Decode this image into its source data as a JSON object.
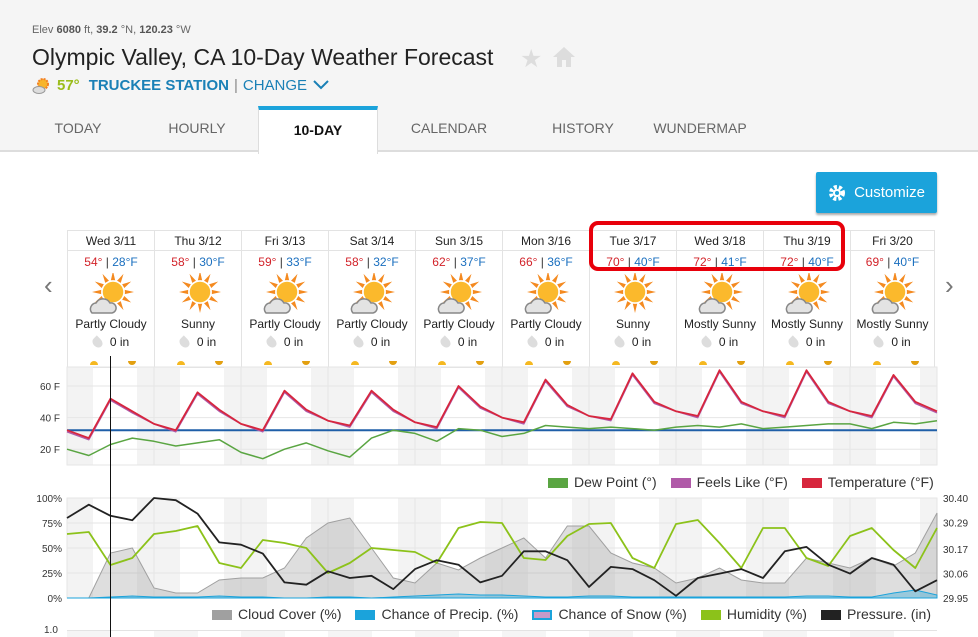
{
  "header": {
    "elev_label": "Elev",
    "elev": "6080",
    "elev_unit": "ft,",
    "lat": "39.2",
    "lat_unit": "°N,",
    "lon": "120.23",
    "lon_unit": "°W",
    "title": "Olympic Valley, CA 10-Day Weather Forecast",
    "current_temp": "57°",
    "station": "TRUCKEE STATION",
    "sep": "|",
    "change": "CHANGE"
  },
  "tabs": [
    "TODAY",
    "HOURLY",
    "10-DAY",
    "CALENDAR",
    "HISTORY",
    "WUNDERMAP"
  ],
  "active_tab": "10-DAY",
  "customize_label": "Customize",
  "days": [
    {
      "name": "Wed 3/11",
      "hi": "54°",
      "lo": "28°F",
      "cond": "Partly Cloudy",
      "precip": "0 in",
      "icon": "partly-cloudy"
    },
    {
      "name": "Thu 3/12",
      "hi": "58°",
      "lo": "30°F",
      "cond": "Sunny",
      "precip": "0 in",
      "icon": "sunny"
    },
    {
      "name": "Fri 3/13",
      "hi": "59°",
      "lo": "33°F",
      "cond": "Partly Cloudy",
      "precip": "0 in",
      "icon": "partly-cloudy"
    },
    {
      "name": "Sat 3/14",
      "hi": "58°",
      "lo": "32°F",
      "cond": "Partly Cloudy",
      "precip": "0 in",
      "icon": "partly-cloudy"
    },
    {
      "name": "Sun 3/15",
      "hi": "62°",
      "lo": "37°F",
      "cond": "Partly Cloudy",
      "precip": "0 in",
      "icon": "partly-cloudy"
    },
    {
      "name": "Mon 3/16",
      "hi": "66°",
      "lo": "36°F",
      "cond": "Partly Cloudy",
      "precip": "0 in",
      "icon": "partly-cloudy"
    },
    {
      "name": "Tue 3/17",
      "hi": "70°",
      "lo": "40°F",
      "cond": "Sunny",
      "precip": "0 in",
      "icon": "sunny"
    },
    {
      "name": "Wed 3/18",
      "hi": "72°",
      "lo": "41°F",
      "cond": "Mostly Sunny",
      "precip": "0 in",
      "icon": "partly-cloudy"
    },
    {
      "name": "Thu 3/19",
      "hi": "72°",
      "lo": "40°F",
      "cond": "Mostly Sunny",
      "precip": "0 in",
      "icon": "partly-cloudy"
    },
    {
      "name": "Fri 3/20",
      "hi": "69°",
      "lo": "40°F",
      "cond": "Mostly Sunny",
      "precip": "0 in",
      "icon": "partly-cloudy"
    }
  ],
  "chart_data": [
    {
      "type": "line",
      "title": "Temperature",
      "x_unit": "6-hour steps from Wed 3/11 00:00",
      "ylim": [
        10,
        72
      ],
      "yticks": [
        "60 F",
        "40 F",
        "20 F"
      ],
      "ytick_values": [
        60,
        40,
        20
      ],
      "freezing_line": 32,
      "legend": [
        "Dew Point (°)",
        "Feels Like (°F)",
        "Temperature (°F)"
      ],
      "colors": {
        "dew": "#5aa542",
        "feels": "#b05aa8",
        "temp": "#d7263d",
        "freeze": "#1f5fa8"
      },
      "series": [
        {
          "name": "Temperature (°F)",
          "values": [
            32,
            27,
            52,
            44,
            36,
            32,
            56,
            45,
            36,
            32,
            57,
            45,
            38,
            35,
            57,
            45,
            37,
            34,
            60,
            47,
            40,
            37,
            64,
            48,
            41,
            39,
            68,
            50,
            44,
            41,
            70,
            50,
            44,
            41,
            70,
            50,
            44,
            41,
            67,
            50,
            44
          ]
        },
        {
          "name": "Feels Like (°F)",
          "values": [
            31,
            26,
            51,
            43,
            36,
            31,
            55,
            44,
            36,
            31,
            56,
            44,
            38,
            34,
            56,
            44,
            37,
            33,
            59,
            46,
            40,
            36,
            63,
            47,
            41,
            38,
            67,
            49,
            44,
            40,
            69,
            49,
            44,
            40,
            69,
            49,
            44,
            40,
            66,
            49,
            43
          ]
        },
        {
          "name": "Dew Point (°)",
          "values": [
            20,
            16,
            23,
            27,
            25,
            22,
            24,
            26,
            18,
            14,
            20,
            24,
            19,
            15,
            27,
            32,
            30,
            25,
            33,
            32,
            28,
            30,
            35,
            34,
            33,
            34,
            33,
            32,
            34,
            35,
            34,
            36,
            33,
            34,
            35,
            36,
            36,
            33,
            37,
            36,
            38
          ]
        }
      ]
    },
    {
      "type": "area",
      "title": "Sky / Precip / Humidity / Pressure",
      "ylim": [
        0,
        100
      ],
      "yticks": [
        "100%",
        "75%",
        "50%",
        "25%",
        "0%"
      ],
      "ytick_values": [
        100,
        75,
        50,
        25,
        0
      ],
      "y2lim": [
        29.95,
        30.4
      ],
      "y2ticks": [
        "30.40",
        "30.29",
        "30.17",
        "30.06",
        "29.95"
      ],
      "y2tick_values": [
        30.4,
        30.29,
        30.17,
        30.06,
        29.95
      ],
      "legend": [
        "Cloud Cover (%)",
        "Chance of Precip. (%)",
        "Chance of Snow (%)",
        "Humidity (%)",
        "Pressure. (in)"
      ],
      "colors": {
        "cloud": "#a0a0a0",
        "precip": "#1ba3db",
        "snow": "#c89ac8",
        "humidity": "#8cc21a",
        "pressure": "#222222"
      },
      "series": [
        {
          "name": "Cloud Cover (%)",
          "values": [
            0,
            0,
            45,
            50,
            10,
            5,
            5,
            18,
            20,
            20,
            30,
            60,
            75,
            80,
            50,
            20,
            15,
            35,
            28,
            40,
            50,
            60,
            40,
            72,
            72,
            45,
            35,
            30,
            15,
            20,
            30,
            18,
            15,
            15,
            40,
            35,
            30,
            40,
            32,
            45,
            85
          ]
        },
        {
          "name": "Chance of Precip. (%)",
          "values": [
            0,
            0,
            1,
            2,
            1,
            1,
            1,
            2,
            1,
            1,
            0,
            0,
            1,
            1,
            0,
            1,
            2,
            3,
            4,
            3,
            3,
            2,
            1,
            1,
            2,
            2,
            1,
            1,
            1,
            1,
            1,
            1,
            1,
            1,
            2,
            2,
            1,
            1,
            5,
            8,
            3
          ]
        },
        {
          "name": "Humidity (%)",
          "values": [
            64,
            66,
            33,
            40,
            64,
            67,
            72,
            35,
            30,
            58,
            55,
            50,
            25,
            35,
            50,
            48,
            46,
            35,
            70,
            76,
            75,
            40,
            38,
            62,
            74,
            75,
            40,
            30,
            74,
            78,
            55,
            30,
            70,
            70,
            40,
            32,
            62,
            70,
            48,
            30,
            70
          ]
        },
        {
          "name": "Pressure. (in)",
          "values": [
            30.31,
            30.37,
            30.32,
            30.3,
            30.4,
            30.39,
            30.33,
            30.2,
            30.19,
            30.15,
            30.02,
            30.01,
            30.07,
            30.04,
            30.05,
            29.99,
            30.08,
            30.12,
            30.1,
            30.02,
            30.05,
            30.16,
            30.16,
            30.12,
            30.0,
            30.09,
            30.08,
            30.03,
            29.96,
            30.04,
            30.06,
            30.08,
            30.04,
            30.16,
            30.18,
            30.1,
            30.06,
            30.13,
            30.1,
            29.98,
            30.03
          ]
        }
      ]
    }
  ],
  "next_chart_ytick": "1.0"
}
